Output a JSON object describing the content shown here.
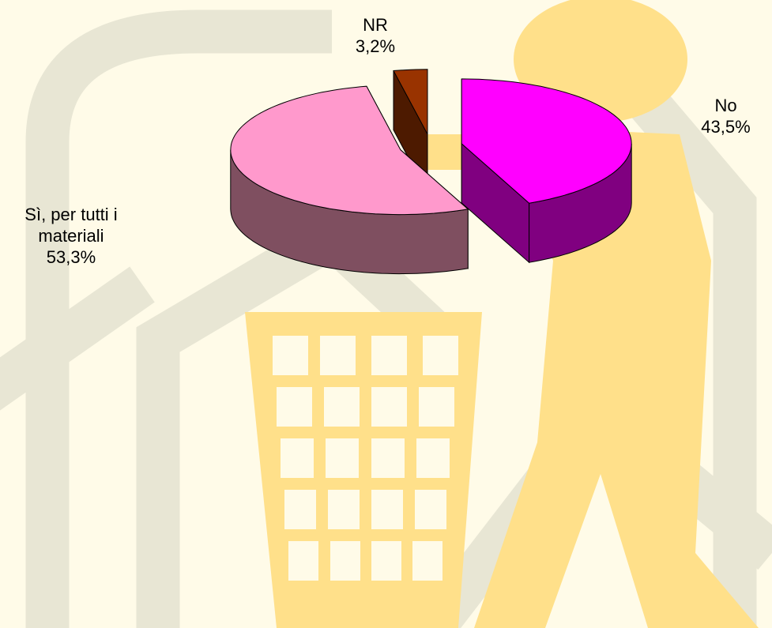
{
  "chart_data": {
    "type": "pie3d",
    "categories": [
      "No",
      "Sì, per tutti i materiali",
      "NR"
    ],
    "values": [
      43.5,
      53.3,
      3.2
    ],
    "value_labels": [
      "43,5%",
      "53,3%",
      "3,2%"
    ],
    "colors": [
      "#ff00ff",
      "#ff99cc",
      "#993300"
    ],
    "side_colors": [
      "#800080",
      "#7f4f60",
      "#4d1a00"
    ]
  }
}
